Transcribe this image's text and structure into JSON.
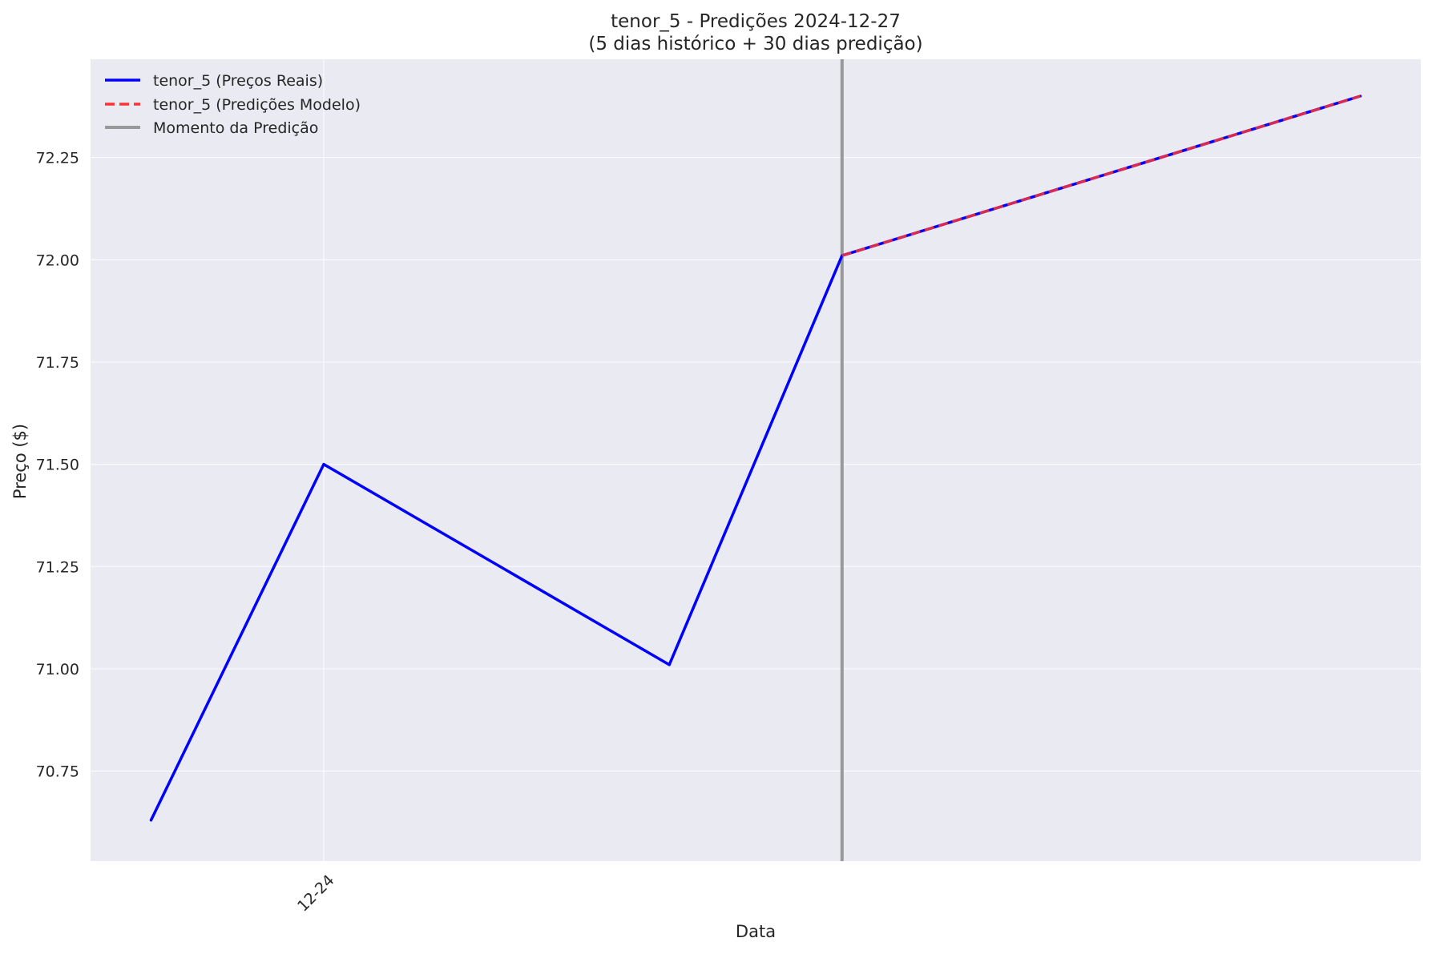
{
  "chart_data": {
    "type": "line",
    "title": "tenor_5 - Predições 2024-12-27",
    "subtitle": "(5 dias histórico + 30 dias predição)",
    "xlabel": "Data",
    "ylabel": "Preço ($)",
    "x_ticks": [
      {
        "x": 1,
        "label": "12-24"
      }
    ],
    "xlim": [
      -0.35,
      7.35
    ],
    "ylim": [
      70.53,
      72.49
    ],
    "y_ticks": [
      70.75,
      71.0,
      71.25,
      71.5,
      71.75,
      72.0,
      72.25
    ],
    "grid": true,
    "legend_position": "top-left",
    "series": [
      {
        "name": "tenor_5 (Preços Reais)",
        "style": "solid",
        "color": "#0000ff",
        "points": [
          {
            "x": 0,
            "y": 70.63
          },
          {
            "x": 1,
            "y": 71.5
          },
          {
            "x": 3,
            "y": 71.01
          },
          {
            "x": 4,
            "y": 72.01
          },
          {
            "x": 7,
            "y": 72.4
          }
        ]
      },
      {
        "name": "tenor_5 (Predições Modelo)",
        "style": "dashed",
        "color": "#ff3333",
        "points": [
          {
            "x": 4,
            "y": 72.01
          },
          {
            "x": 7,
            "y": 72.4
          }
        ]
      }
    ],
    "vline": {
      "name": "Momento da Predição",
      "x": 4,
      "color": "#999999"
    }
  }
}
